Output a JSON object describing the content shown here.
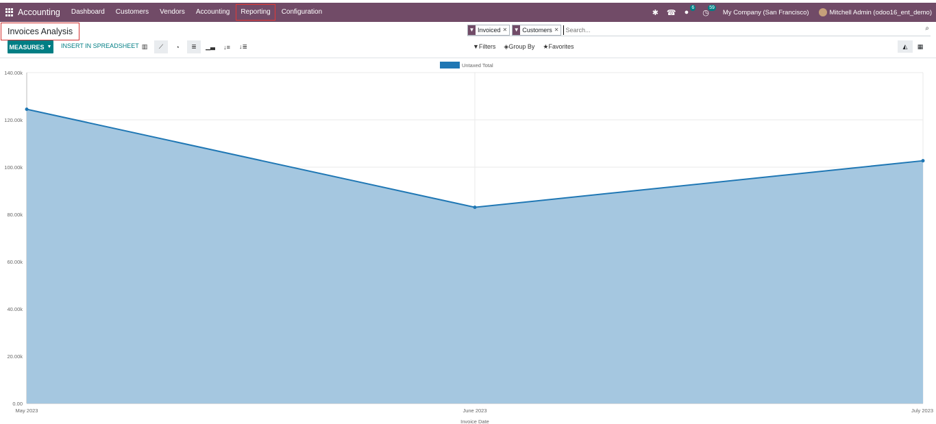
{
  "navbar": {
    "app_name": "Accounting",
    "menu": [
      "Dashboard",
      "Customers",
      "Vendors",
      "Accounting",
      "Reporting",
      "Configuration"
    ],
    "messages_badge": "6",
    "activities_badge": "59",
    "company": "My Company (San Francisco)",
    "user": "Mitchell Admin (odoo16_ent_demo)"
  },
  "control_panel": {
    "title": "Invoices Analysis",
    "facets": [
      "Invoiced",
      "Customers"
    ],
    "search_placeholder": "Search...",
    "measures_label": "MEASURES",
    "spreadsheet_label": "INSERT IN SPREADSHEET",
    "filters_label": "Filters",
    "group_by_label": "Group By",
    "favorites_label": "Favorites"
  },
  "colors": {
    "navbar": "#714b67",
    "accent": "#017e84",
    "line": "#1f77b4",
    "area": "#a5c7e0"
  },
  "chart_data": {
    "type": "area",
    "categories": [
      "May 2023",
      "June 2023",
      "July 2023"
    ],
    "series": [
      {
        "name": "Untaxed Total",
        "values": [
          124500,
          83000,
          102700
        ]
      }
    ],
    "xlabel": "Invoice Date",
    "ylabel": "",
    "ylim": [
      0,
      140000
    ],
    "yticks": [
      "0.00",
      "20.00k",
      "40.00k",
      "60.00k",
      "80.00k",
      "100.00k",
      "120.00k",
      "140.00k"
    ],
    "grid": true,
    "legend": "top-center"
  }
}
